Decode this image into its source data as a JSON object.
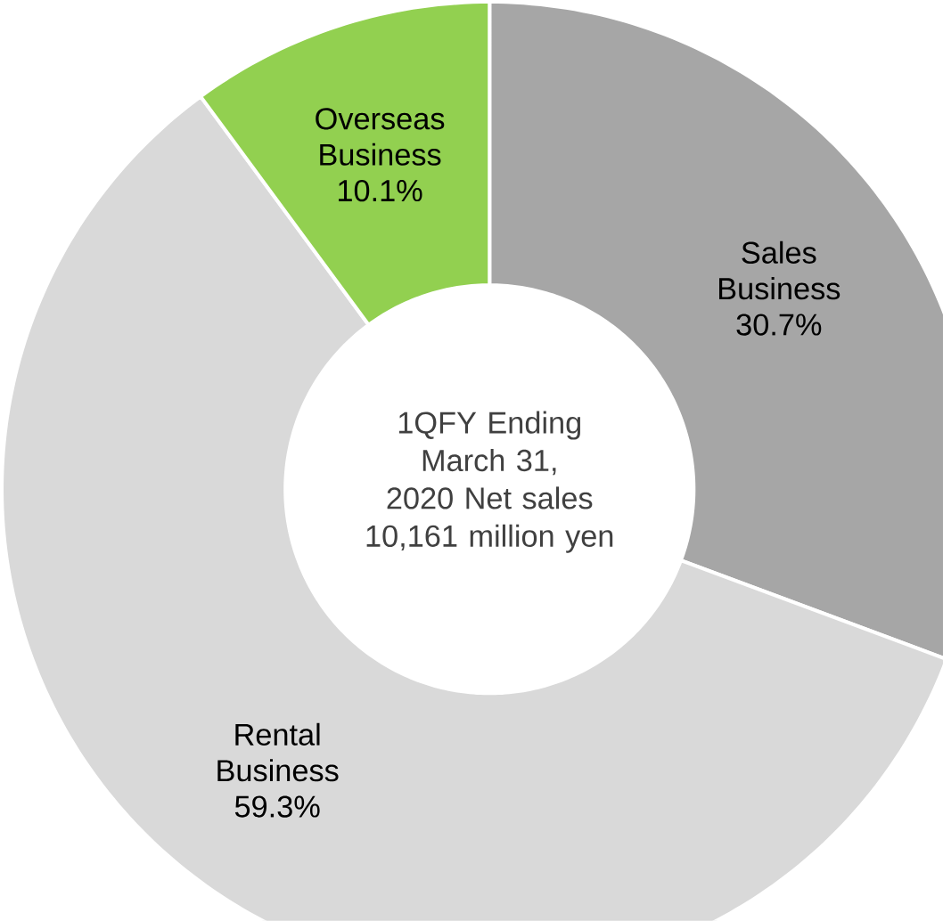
{
  "chart_data": {
    "type": "donut",
    "title": "1QFY Ending March 31, 2020 Net sales 10,161 million yen",
    "categories": [
      "Sales Business",
      "Rental Business",
      "Overseas Business"
    ],
    "values": [
      30.7,
      59.3,
      10.1
    ],
    "colors": [
      "#a6a6a6",
      "#d9d9d9",
      "#92d050"
    ],
    "value_labels": [
      "30.7%",
      "59.3%",
      "10.1%"
    ]
  }
}
